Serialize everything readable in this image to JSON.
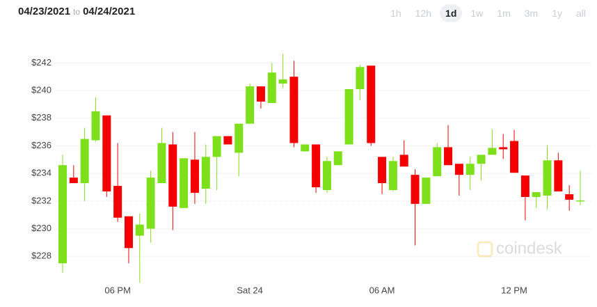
{
  "header": {
    "from": "04/23/2021",
    "separator": "to",
    "to": "04/24/2021",
    "zoom_options": [
      "1h",
      "12h",
      "1d",
      "1w",
      "1m",
      "3m",
      "1y",
      "all"
    ],
    "zoom_active": "1d"
  },
  "watermark": "coindesk",
  "chart_data": {
    "type": "candlestick",
    "categories": [
      null,
      null,
      null,
      null,
      null,
      "06 PM",
      null,
      null,
      null,
      null,
      null,
      null,
      null,
      null,
      null,
      null,
      null,
      "Sat 24",
      null,
      null,
      null,
      null,
      null,
      null,
      null,
      null,
      null,
      null,
      null,
      "06 AM",
      null,
      null,
      null,
      null,
      null,
      null,
      null,
      null,
      null,
      null,
      null,
      "12 PM",
      null,
      null,
      null,
      null,
      null,
      null
    ],
    "open": [
      227.5,
      233.7,
      233.3,
      236.4,
      238.2,
      233.1,
      230.9,
      229.5,
      230.0,
      233.3,
      236.1,
      231.5,
      235.0,
      232.9,
      235.2,
      236.7,
      235.5,
      237.6,
      240.3,
      239.1,
      240.5,
      241.0,
      235.6,
      236.1,
      232.8,
      234.6,
      236.1,
      240.1,
      241.8,
      235.2,
      232.8,
      235.35,
      233.9,
      231.8,
      233.8,
      235.9,
      234.7,
      233.9,
      234.7,
      235.35,
      235.9,
      236.35,
      233.85,
      232.3,
      232.4,
      234.95,
      232.5,
      232.0
    ],
    "high": [
      235.35,
      234.6,
      237.3,
      239.5,
      238.2,
      236.2,
      230.9,
      231.1,
      234.2,
      237.3,
      237.0,
      235.1,
      237.0,
      236.1,
      236.7,
      236.7,
      237.6,
      240.5,
      240.3,
      242.0,
      242.65,
      242.15,
      236.1,
      236.1,
      235.2,
      235.6,
      240.1,
      241.85,
      241.8,
      235.2,
      235.2,
      236.4,
      234.3,
      233.7,
      236.2,
      237.5,
      234.7,
      235.2,
      235.35,
      237.2,
      236.85,
      237.15,
      233.85,
      232.65,
      236.05,
      235.5,
      233.15,
      234.2
    ],
    "low": [
      226.8,
      233.3,
      232.0,
      236.3,
      232.3,
      230.5,
      227.5,
      226.1,
      229.0,
      233.3,
      229.9,
      231.5,
      231.8,
      231.8,
      232.8,
      236.1,
      233.8,
      237.6,
      238.7,
      239.1,
      240.2,
      235.9,
      235.6,
      232.6,
      232.6,
      234.6,
      236.1,
      239.3,
      236.0,
      232.5,
      232.7,
      234.5,
      228.8,
      231.8,
      233.8,
      234.6,
      232.4,
      232.8,
      233.5,
      235.35,
      235.05,
      234.05,
      230.6,
      231.5,
      231.4,
      232.7,
      231.3,
      231.7
    ],
    "close": [
      234.6,
      233.3,
      236.5,
      238.5,
      232.7,
      230.8,
      228.6,
      230.3,
      233.7,
      236.2,
      231.6,
      235.1,
      232.6,
      235.2,
      236.7,
      236.1,
      237.6,
      240.3,
      239.2,
      241.3,
      240.8,
      236.2,
      236.1,
      233.0,
      234.9,
      235.6,
      240.1,
      241.7,
      236.2,
      233.3,
      234.9,
      234.5,
      231.8,
      233.7,
      235.9,
      234.6,
      233.9,
      234.7,
      235.35,
      235.85,
      235.75,
      234.05,
      232.3,
      232.65,
      234.95,
      232.7,
      232.1,
      232.05
    ],
    "up_color": "#7ee01b",
    "down_color": "#f40000",
    "ylim": [
      226.0,
      243.8
    ],
    "yticks": [
      {
        "value": 228,
        "label": "$228"
      },
      {
        "value": 230,
        "label": "$230"
      },
      {
        "value": 232,
        "label": "$232"
      },
      {
        "value": 234,
        "label": "$234"
      },
      {
        "value": 236,
        "label": "$236"
      },
      {
        "value": 238,
        "label": "$238"
      },
      {
        "value": 240,
        "label": "$240"
      },
      {
        "value": 242,
        "label": "$242"
      }
    ],
    "grid": true
  }
}
